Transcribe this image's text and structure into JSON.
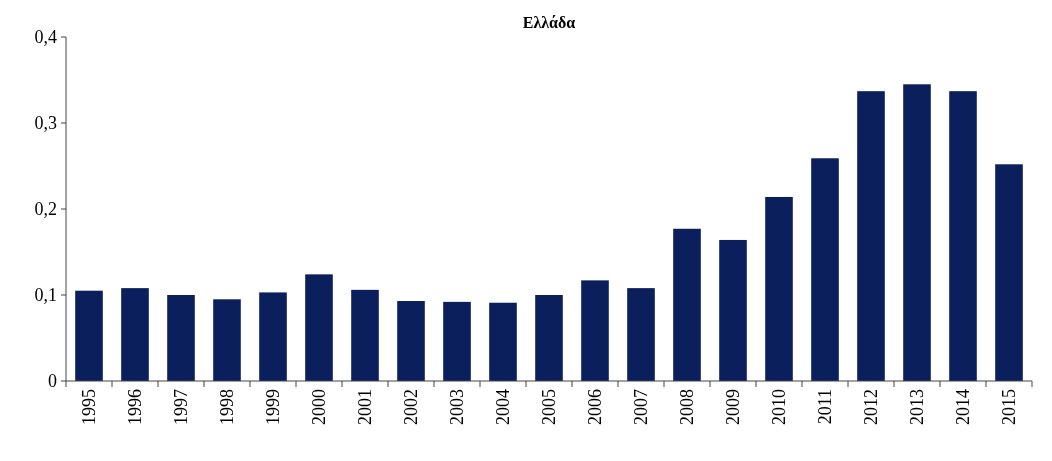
{
  "chart_data": {
    "type": "bar",
    "title": "Ελλάδα",
    "categories": [
      "1995",
      "1996",
      "1997",
      "1998",
      "1999",
      "2000",
      "2001",
      "2002",
      "2003",
      "2004",
      "2005",
      "2006",
      "2007",
      "2008",
      "2009",
      "2010",
      "2011",
      "2012",
      "2013",
      "2014",
      "2015"
    ],
    "values": [
      0.105,
      0.108,
      0.1,
      0.095,
      0.103,
      0.124,
      0.106,
      0.093,
      0.092,
      0.091,
      0.1,
      0.117,
      0.108,
      0.177,
      0.164,
      0.214,
      0.259,
      0.337,
      0.345,
      0.337,
      0.252
    ],
    "color": "#0b1f5c",
    "ylim": [
      0,
      0.4
    ],
    "yticks": [
      0,
      {
        "value": 0.1,
        "label": "0,1"
      },
      {
        "value": 0.2,
        "label": "0,2"
      },
      {
        "value": 0.3,
        "label": "0,3"
      },
      {
        "value": 0.4,
        "label": "0,4"
      }
    ],
    "grid": false
  }
}
